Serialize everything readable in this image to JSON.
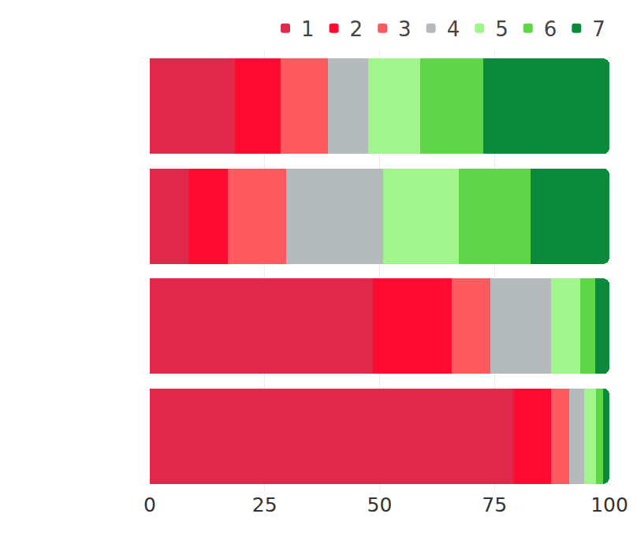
{
  "chart_data": {
    "type": "bar",
    "orientation": "horizontal",
    "stacked": true,
    "categories": [
      null,
      null,
      null,
      null
    ],
    "series": [
      {
        "name": "1",
        "color": "#e0294a",
        "values": [
          18.5,
          8.4,
          48.5,
          79.1
        ]
      },
      {
        "name": "2",
        "color": "#ff0a30",
        "values": [
          10,
          8.6,
          17.2,
          8.2
        ]
      },
      {
        "name": "3",
        "color": "#ff5a60",
        "values": [
          10.3,
          12.7,
          8.4,
          4.0
        ]
      },
      {
        "name": "4",
        "color": "#b5babd",
        "values": [
          8.7,
          21.1,
          13.2,
          3.2
        ]
      },
      {
        "name": "5",
        "color": "#a0f58c",
        "values": [
          11.3,
          16.4,
          6.4,
          2.6
        ]
      },
      {
        "name": "6",
        "color": "#5fd54a",
        "values": [
          13.8,
          15.6,
          3.2,
          1.5
        ]
      },
      {
        "name": "7",
        "color": "#0a8a3a",
        "values": [
          27.4,
          17.2,
          3.1,
          1.4
        ]
      }
    ],
    "xlim": [
      0,
      100
    ],
    "xticks": [
      0,
      25,
      50,
      75,
      100
    ],
    "grid": true,
    "legend": "top right",
    "tick_labels": "x"
  }
}
